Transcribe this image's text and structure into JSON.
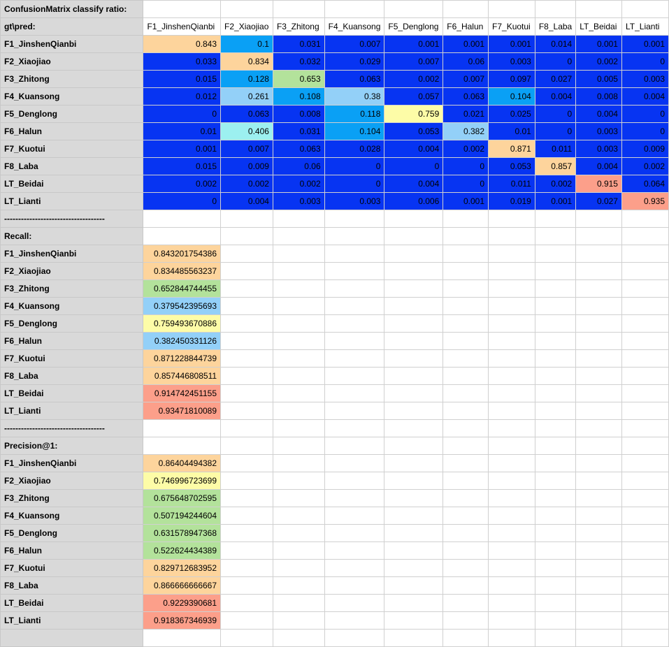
{
  "sheet": {
    "title": "ConfusionMatrix classify ratio:",
    "corner": "gt\\pred:",
    "divider": "------------------------------------",
    "recall_label": "Recall:",
    "precision_label": "Precision@1:",
    "classes": [
      "F1_JinshenQianbi",
      "F2_Xiaojiao",
      "F3_Zhitong",
      "F4_Kuansong",
      "F5_Denglong",
      "F6_Halun",
      "F7_Kuotui",
      "F8_Laba",
      "LT_Beidai",
      "LT_Lianti"
    ]
  },
  "matrix": [
    [
      "0.843",
      "0.1",
      "0.031",
      "0.007",
      "0.001",
      "0.001",
      "0.001",
      "0.014",
      "0.001",
      "0.001"
    ],
    [
      "0.033",
      "0.834",
      "0.032",
      "0.029",
      "0.007",
      "0.06",
      "0.003",
      "0",
      "0.002",
      "0"
    ],
    [
      "0.015",
      "0.128",
      "0.653",
      "0.063",
      "0.002",
      "0.007",
      "0.097",
      "0.027",
      "0.005",
      "0.003"
    ],
    [
      "0.012",
      "0.261",
      "0.108",
      "0.38",
      "0.057",
      "0.063",
      "0.104",
      "0.004",
      "0.008",
      "0.004"
    ],
    [
      "0",
      "0.063",
      "0.008",
      "0.118",
      "0.759",
      "0.021",
      "0.025",
      "0",
      "0.004",
      "0"
    ],
    [
      "0.01",
      "0.406",
      "0.031",
      "0.104",
      "0.053",
      "0.382",
      "0.01",
      "0",
      "0.003",
      "0"
    ],
    [
      "0.001",
      "0.007",
      "0.063",
      "0.028",
      "0.004",
      "0.002",
      "0.871",
      "0.011",
      "0.003",
      "0.009"
    ],
    [
      "0.015",
      "0.009",
      "0.06",
      "0",
      "0",
      "0",
      "0.053",
      "0.857",
      "0.004",
      "0.002"
    ],
    [
      "0.002",
      "0.002",
      "0.002",
      "0",
      "0.004",
      "0",
      "0.011",
      "0.002",
      "0.915",
      "0.064"
    ],
    [
      "0",
      "0.004",
      "0.003",
      "0.003",
      "0.006",
      "0.001",
      "0.019",
      "0.001",
      "0.027",
      "0.935"
    ]
  ],
  "matrix_colors": [
    [
      "#fdd49c",
      "#0aa0f5",
      "#0734f2",
      "#0734f2",
      "#0734f2",
      "#0734f2",
      "#0734f2",
      "#0734f2",
      "#0734f2",
      "#0734f2"
    ],
    [
      "#0734f2",
      "#fdd49c",
      "#0734f2",
      "#0734f2",
      "#0734f2",
      "#0734f2",
      "#0734f2",
      "#0734f2",
      "#0734f2",
      "#0734f2"
    ],
    [
      "#0734f2",
      "#0aa0f5",
      "#b3e29b",
      "#0734f2",
      "#0734f2",
      "#0734f2",
      "#0734f2",
      "#0734f2",
      "#0734f2",
      "#0734f2"
    ],
    [
      "#0734f2",
      "#93d0f8",
      "#0aa0f5",
      "#93d0f8",
      "#0734f2",
      "#0734f2",
      "#0aa0f5",
      "#0734f2",
      "#0734f2",
      "#0734f2"
    ],
    [
      "#0734f2",
      "#0734f2",
      "#0734f2",
      "#0aa0f5",
      "#fdfca7",
      "#0734f2",
      "#0734f2",
      "#0734f2",
      "#0734f2",
      "#0734f2"
    ],
    [
      "#0734f2",
      "#9cf0f0",
      "#0734f2",
      "#0aa0f5",
      "#0734f2",
      "#93d0f8",
      "#0734f2",
      "#0734f2",
      "#0734f2",
      "#0734f2"
    ],
    [
      "#0734f2",
      "#0734f2",
      "#0734f2",
      "#0734f2",
      "#0734f2",
      "#0734f2",
      "#fdd49c",
      "#0734f2",
      "#0734f2",
      "#0734f2"
    ],
    [
      "#0734f2",
      "#0734f2",
      "#0734f2",
      "#0734f2",
      "#0734f2",
      "#0734f2",
      "#0734f2",
      "#fdd49c",
      "#0734f2",
      "#0734f2"
    ],
    [
      "#0734f2",
      "#0734f2",
      "#0734f2",
      "#0734f2",
      "#0734f2",
      "#0734f2",
      "#0734f2",
      "#0734f2",
      "#fc9f8a",
      "#0734f2"
    ],
    [
      "#0734f2",
      "#0734f2",
      "#0734f2",
      "#0734f2",
      "#0734f2",
      "#0734f2",
      "#0734f2",
      "#0734f2",
      "#0734f2",
      "#fc9f8a"
    ]
  ],
  "recall": [
    "0.843201754386",
    "0.834485563237",
    "0.652844744455",
    "0.379542395693",
    "0.759493670886",
    "0.382450331126",
    "0.871228844739",
    "0.857446808511",
    "0.914742451155",
    "0.93471810089"
  ],
  "recall_colors": [
    "#fdd49c",
    "#fdd49c",
    "#b3e29b",
    "#93d0f8",
    "#fdfca7",
    "#93d0f8",
    "#fdd49c",
    "#fdd49c",
    "#fc9f8a",
    "#fc9f8a"
  ],
  "precision": [
    "0.86404494382",
    "0.746996723699",
    "0.675648702595",
    "0.507194244604",
    "0.631578947368",
    "0.522624434389",
    "0.829712683952",
    "0.866666666667",
    "0.9229390681",
    "0.918367346939"
  ],
  "precision_colors": [
    "#fdd49c",
    "#fdfca7",
    "#b3e29b",
    "#b3e29b",
    "#b3e29b",
    "#b3e29b",
    "#fdd49c",
    "#fdd49c",
    "#fc9f8a",
    "#fc9f8a"
  ]
}
